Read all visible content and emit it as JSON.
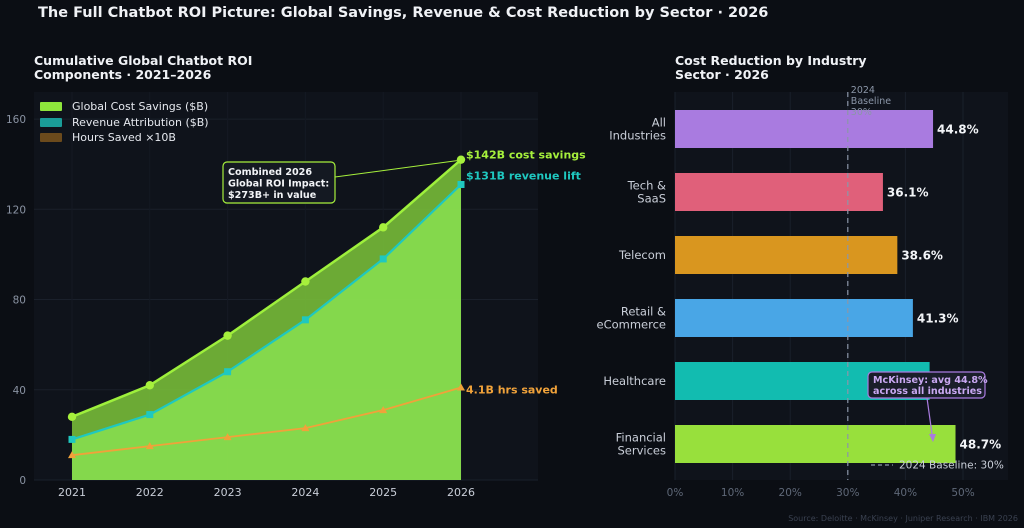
{
  "title": "The Full Chatbot ROI Picture: Global Savings, Revenue & Cost Reduction by Sector · 2026",
  "source": "Source: Deloitte · McKinsey · Juniper Research · IBM 2026",
  "colors": {
    "background": "#0b0e14",
    "panel": "#0f131b",
    "savings": "#8ee63c",
    "revenue": "#1fc8c0",
    "hours": "#f0a23a",
    "baseline": "#7b8798"
  },
  "chart_data": [
    {
      "type": "area",
      "title_lines": [
        "Cumulative Global Chatbot ROI",
        "Components · 2021–2026"
      ],
      "x": [
        2021,
        2022,
        2023,
        2024,
        2025,
        2026
      ],
      "ylim": [
        0,
        172
      ],
      "yticks": [
        0,
        40,
        80,
        120,
        160
      ],
      "grid": true,
      "legend_position": "top-left",
      "series": [
        {
          "name": "Global Cost Savings ($B)",
          "values": [
            28,
            42,
            64,
            88,
            112,
            142
          ],
          "color": "#8ee63c"
        },
        {
          "name": "Revenue Attribution ($B)",
          "values": [
            18,
            29,
            48,
            71,
            98,
            131
          ],
          "color": "#1fc8c0"
        },
        {
          "name": "Hours Saved ×10B",
          "values": [
            11,
            15,
            19,
            23,
            31,
            41
          ],
          "color": "#f0a23a"
        }
      ],
      "end_labels": {
        "savings": "$142B cost savings",
        "revenue": "$131B revenue lift",
        "hours": "4.1B hrs saved"
      },
      "annotation_lines": [
        "Combined 2026",
        "Global ROI Impact:",
        "$273B+ in value"
      ]
    },
    {
      "type": "bar",
      "orientation": "horizontal",
      "title_lines": [
        "Cost Reduction by Industry",
        "Sector · 2026"
      ],
      "categories": [
        [
          "All",
          "Industries"
        ],
        [
          "Tech &",
          "SaaS"
        ],
        [
          "Telecom"
        ],
        [
          "Retail &",
          "eCommerce"
        ],
        [
          "Healthcare"
        ],
        [
          "Financial",
          "Services"
        ]
      ],
      "values": [
        44.8,
        36.1,
        38.6,
        41.3,
        44.2,
        48.7
      ],
      "value_labels": [
        "44.8%",
        "36.1%",
        "38.6%",
        "41.3%",
        "",
        "48.7%"
      ],
      "colors": [
        "#a97be0",
        "#e0607a",
        "#d9961f",
        "#49a6e6",
        "#12bcb0",
        "#98e03c"
      ],
      "xlim": [
        0,
        58
      ],
      "xticks": [
        "0%",
        "10%",
        "20%",
        "30%",
        "40%",
        "50%"
      ],
      "baseline": {
        "value": 30,
        "top_label_lines": [
          "2024",
          "Baseline",
          "30%"
        ],
        "legend_label": "2024 Baseline: 30%"
      },
      "annotation_lines": [
        "McKinsey: avg 44.8%",
        "across all industries"
      ]
    }
  ]
}
